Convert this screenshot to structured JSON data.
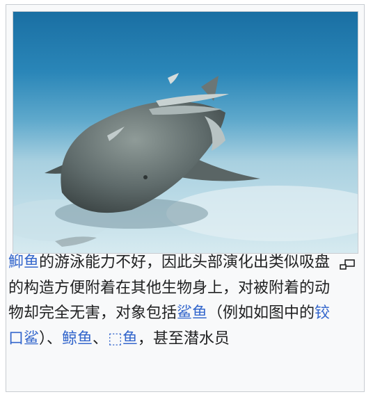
{
  "figure": {
    "image_alt": "护士鲨背上附着的鮣鱼",
    "caption": [
      {
        "text": "鮣鱼",
        "link": true
      },
      {
        "text": "的游泳能力不好，因此头部演化出类似吸盘的构造方便附着在其他生物身上，对被附着的动物却完全无害，对象包括",
        "link": false
      },
      {
        "text": "鲨鱼",
        "link": true
      },
      {
        "text": "（例如如图中的",
        "link": false
      },
      {
        "text": "铰口鲨",
        "link": true
      },
      {
        "text": "）、",
        "link": false
      },
      {
        "text": "鲸鱼",
        "link": true
      },
      {
        "text": "、",
        "link": false
      },
      {
        "text": "⬚鱼",
        "link": true
      },
      {
        "text": "，甚至潜水员",
        "link": false
      }
    ]
  },
  "icons": {
    "enlarge": "magnify-clip-icon"
  },
  "colors": {
    "link": "#3366cc",
    "text": "#202122",
    "border": "#c8ccd1",
    "frame_bg": "#f8f9fa"
  }
}
